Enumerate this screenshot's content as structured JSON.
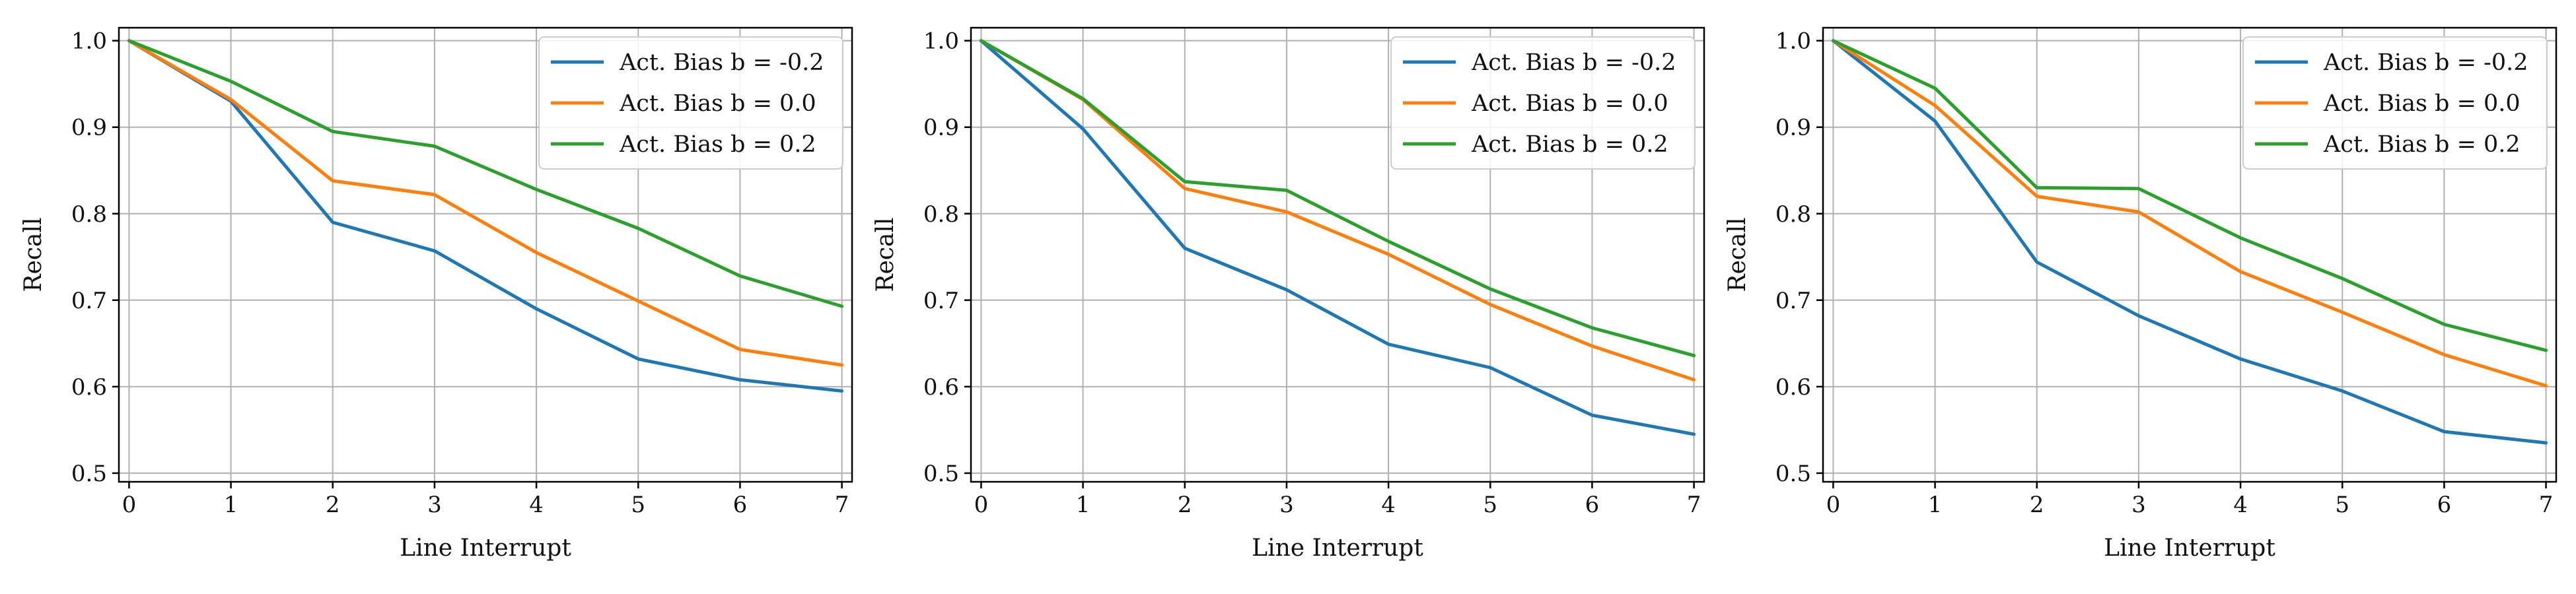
{
  "chart_data": [
    {
      "type": "line",
      "xlabel": "Line Interrupt",
      "ylabel": "Recall",
      "x": [
        0,
        1,
        2,
        3,
        4,
        5,
        6,
        7
      ],
      "xlim": [
        -0.1,
        7.1
      ],
      "ylim": [
        0.49,
        1.015
      ],
      "xticks": [
        "0",
        "1",
        "2",
        "3",
        "4",
        "5",
        "6",
        "7"
      ],
      "yticks": [
        "0.5",
        "0.6",
        "0.7",
        "0.8",
        "0.9",
        "1.0"
      ],
      "grid": true,
      "legend_position": "top-right",
      "series": [
        {
          "name": "Act. Bias b = -0.2",
          "color": "#1f77b4",
          "values": [
            1.0,
            0.93,
            0.79,
            0.757,
            0.69,
            0.632,
            0.608,
            0.595
          ]
        },
        {
          "name": "Act. Bias b = 0.0",
          "color": "#ff7f0e",
          "values": [
            1.0,
            0.932,
            0.838,
            0.822,
            0.755,
            0.699,
            0.643,
            0.625
          ]
        },
        {
          "name": "Act. Bias b = 0.2",
          "color": "#2ca02c",
          "values": [
            1.0,
            0.953,
            0.895,
            0.878,
            0.828,
            0.783,
            0.728,
            0.693
          ]
        }
      ]
    },
    {
      "type": "line",
      "xlabel": "Line Interrupt",
      "ylabel": "Recall",
      "x": [
        0,
        1,
        2,
        3,
        4,
        5,
        6,
        7
      ],
      "xlim": [
        -0.1,
        7.1
      ],
      "ylim": [
        0.49,
        1.015
      ],
      "xticks": [
        "0",
        "1",
        "2",
        "3",
        "4",
        "5",
        "6",
        "7"
      ],
      "yticks": [
        "0.5",
        "0.6",
        "0.7",
        "0.8",
        "0.9",
        "1.0"
      ],
      "grid": true,
      "legend_position": "top-right",
      "series": [
        {
          "name": "Act. Bias b = -0.2",
          "color": "#1f77b4",
          "values": [
            1.0,
            0.898,
            0.76,
            0.712,
            0.649,
            0.622,
            0.567,
            0.545
          ]
        },
        {
          "name": "Act. Bias b = 0.0",
          "color": "#ff7f0e",
          "values": [
            1.0,
            0.932,
            0.829,
            0.802,
            0.753,
            0.695,
            0.647,
            0.608
          ]
        },
        {
          "name": "Act. Bias b = 0.2",
          "color": "#2ca02c",
          "values": [
            1.0,
            0.933,
            0.837,
            0.827,
            0.768,
            0.713,
            0.668,
            0.636
          ]
        }
      ]
    },
    {
      "type": "line",
      "xlabel": "Line Interrupt",
      "ylabel": "Recall",
      "x": [
        0,
        1,
        2,
        3,
        4,
        5,
        6,
        7
      ],
      "xlim": [
        -0.1,
        7.1
      ],
      "ylim": [
        0.49,
        1.015
      ],
      "xticks": [
        "0",
        "1",
        "2",
        "3",
        "4",
        "5",
        "6",
        "7"
      ],
      "yticks": [
        "0.5",
        "0.6",
        "0.7",
        "0.8",
        "0.9",
        "1.0"
      ],
      "grid": true,
      "legend_position": "top-right",
      "series": [
        {
          "name": "Act. Bias b = -0.2",
          "color": "#1f77b4",
          "values": [
            1.0,
            0.907,
            0.744,
            0.682,
            0.632,
            0.595,
            0.548,
            0.535
          ]
        },
        {
          "name": "Act. Bias b = 0.0",
          "color": "#ff7f0e",
          "values": [
            1.0,
            0.925,
            0.82,
            0.802,
            0.733,
            0.686,
            0.637,
            0.601
          ]
        },
        {
          "name": "Act. Bias b = 0.2",
          "color": "#2ca02c",
          "values": [
            1.0,
            0.945,
            0.83,
            0.829,
            0.772,
            0.725,
            0.672,
            0.642
          ]
        }
      ]
    }
  ]
}
